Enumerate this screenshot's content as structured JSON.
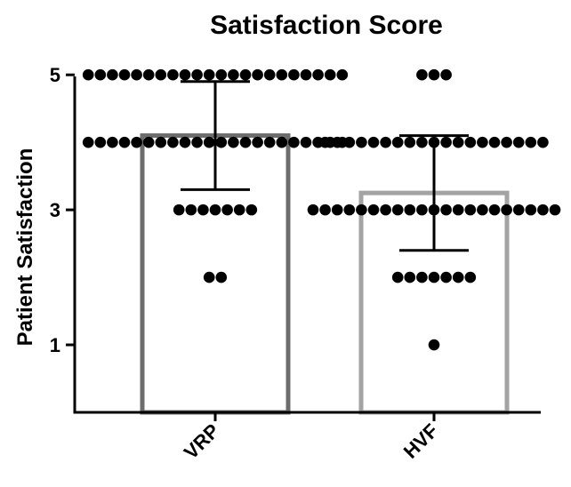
{
  "chart_data": {
    "type": "bar",
    "title": "Satisfaction Score",
    "xlabel": "",
    "ylabel": "Patient Satisfaction",
    "ylim": [
      0,
      5
    ],
    "yticks": [
      1,
      3,
      5
    ],
    "categories": [
      "VRP",
      "HVF"
    ],
    "series": [
      {
        "values": [
          4.1,
          3.25
        ],
        "error_sd": [
          0.8,
          0.85
        ],
        "bar_colors": [
          "#6d6d6d",
          "#a3a3a3"
        ],
        "points": [
          [
            5,
            5,
            5,
            5,
            5,
            5,
            5,
            5,
            5,
            5,
            5,
            5,
            5,
            5,
            5,
            5,
            5,
            5,
            5,
            5,
            5,
            5,
            4,
            4,
            4,
            4,
            4,
            4,
            4,
            4,
            4,
            4,
            4,
            4,
            4,
            4,
            4,
            4,
            4,
            4,
            4,
            4,
            4,
            4,
            3,
            3,
            3,
            3,
            3,
            3,
            3,
            2,
            2
          ],
          [
            5,
            5,
            5,
            4,
            4,
            4,
            4,
            4,
            4,
            4,
            4,
            4,
            4,
            4,
            4,
            4,
            4,
            4,
            4,
            4,
            4,
            4,
            3,
            3,
            3,
            3,
            3,
            3,
            3,
            3,
            3,
            3,
            3,
            3,
            3,
            3,
            3,
            3,
            3,
            3,
            3,
            3,
            3,
            2,
            2,
            2,
            2,
            2,
            2,
            2,
            1
          ]
        ]
      }
    ],
    "grid": false,
    "legend": "none"
  }
}
